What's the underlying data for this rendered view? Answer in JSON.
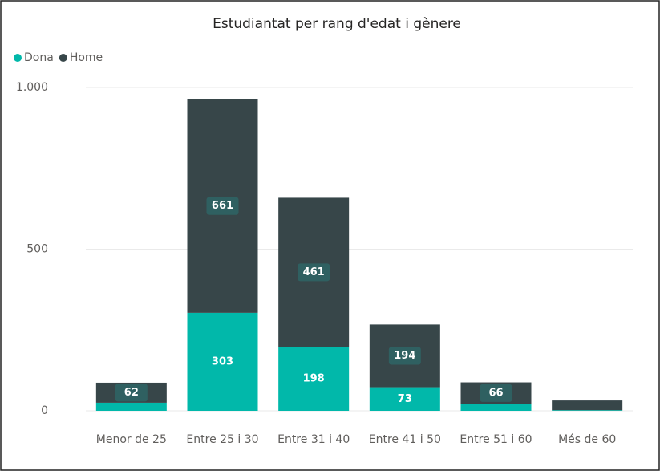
{
  "chart_data": {
    "type": "stacked_bar",
    "title": "Estudiantat per rang d'edat i gènere",
    "categories": [
      "Menor de 25",
      "Entre 25 i 30",
      "Entre 31 i 40",
      "Entre 41 i 50",
      "Entre 51 i 60",
      "Més de 60"
    ],
    "series": [
      {
        "name": "Dona",
        "color": "#01b8aa",
        "values": [
          25,
          303,
          198,
          73,
          22,
          2
        ],
        "value_labels": [
          null,
          "303",
          "198",
          "73",
          null,
          null
        ]
      },
      {
        "name": "Home",
        "color": "#374649",
        "values": [
          62,
          661,
          461,
          194,
          66,
          30
        ],
        "value_labels": [
          "62",
          "661",
          "461",
          "194",
          "66",
          null
        ]
      }
    ],
    "ylim": [
      0,
      1000
    ],
    "yticks": [
      0,
      500,
      {
        "value": 1000,
        "label": "1.000"
      }
    ],
    "grid": true,
    "legend": "top-left"
  }
}
